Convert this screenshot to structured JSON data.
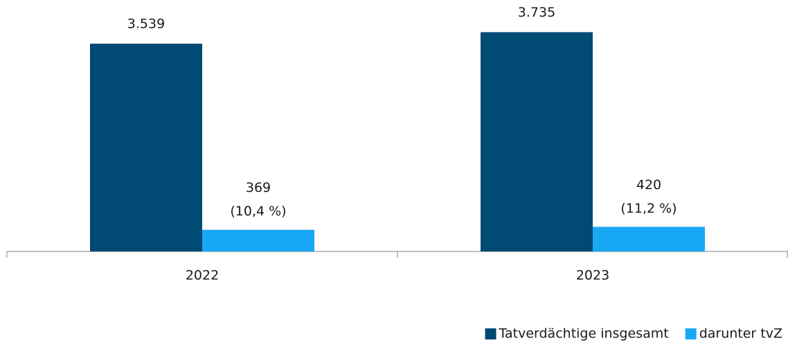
{
  "chart_data": {
    "type": "bar",
    "categories": [
      "2022",
      "2023"
    ],
    "series": [
      {
        "name": "Tatverdächtige insgesamt",
        "color": "#004a73",
        "values": [
          3539,
          3735
        ],
        "value_labels": [
          "3.539",
          "3.735"
        ]
      },
      {
        "name": "darunter tvZ",
        "color": "#18a8f5",
        "values": [
          369,
          420
        ],
        "value_labels": [
          "369",
          "420"
        ],
        "share_labels": [
          "(10,4 %)",
          "(11,2 %)"
        ]
      }
    ],
    "ylim": [
      0,
      4000
    ],
    "legend": "bottom-right"
  }
}
